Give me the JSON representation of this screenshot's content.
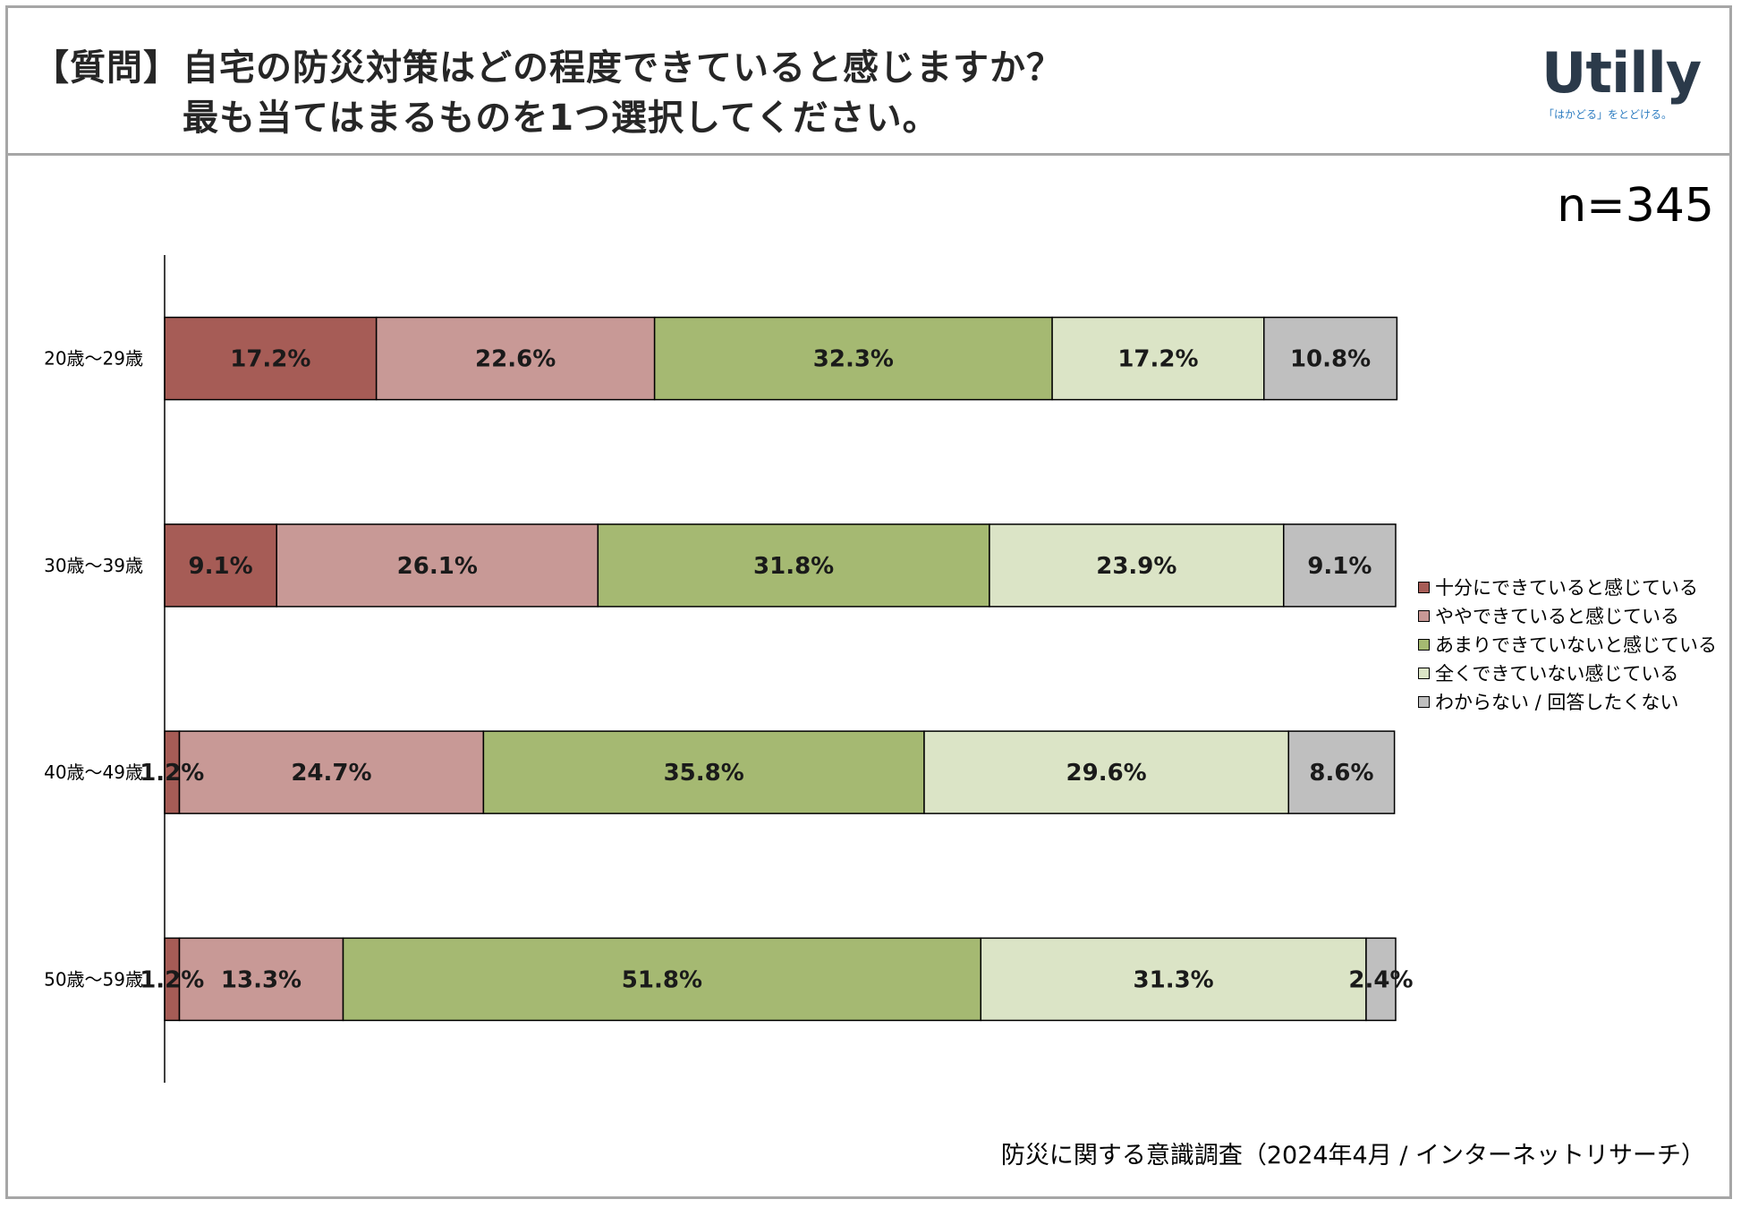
{
  "header": {
    "question_label": "【質問】",
    "question_line1": "自宅の防災対策はどの程度できていると感じますか？",
    "question_line2": "最も当てはまるものを1つ選択してください。"
  },
  "logo": {
    "name": "Utilly",
    "tagline": "「はかどる」をとどける。"
  },
  "sample_size": "n=345",
  "footer": "防災に関する意識調査（2024年4月 / インターネットリサーチ）",
  "chart_data": {
    "type": "bar",
    "orientation": "horizontal",
    "stacked": "percent",
    "categories": [
      "20歳～29歳",
      "30歳～39歳",
      "40歳～49歳",
      "50歳～59歳"
    ],
    "series": [
      {
        "name": "十分にできていると感じている",
        "color": "#a65c56",
        "values": [
          17.2,
          9.1,
          1.2,
          1.2
        ],
        "labels": [
          "17.2%",
          "9.1%",
          "1.2%",
          "1.2%"
        ]
      },
      {
        "name": "ややできていると感じている",
        "color": "#c89996",
        "values": [
          22.6,
          26.1,
          24.7,
          13.3
        ],
        "labels": [
          "22.6%",
          "26.1%",
          "24.7%",
          "13.3%"
        ]
      },
      {
        "name": "あまりできていないと感じている",
        "color": "#a5b972",
        "values": [
          32.3,
          31.8,
          35.8,
          51.8
        ],
        "labels": [
          "32.3%",
          "31.8%",
          "35.8%",
          "51.8%"
        ]
      },
      {
        "name": "全くできていない感じている",
        "color": "#dbe4c6",
        "values": [
          17.2,
          23.9,
          29.6,
          31.3
        ],
        "labels": [
          "17.2%",
          "23.9%",
          "29.6%",
          "31.3%"
        ]
      },
      {
        "name": "わからない / 回答したくない",
        "color": "#bfbfbf",
        "values": [
          10.8,
          9.1,
          8.6,
          2.4
        ],
        "labels": [
          "10.8%",
          "9.1%",
          "8.6%",
          "2.4%"
        ]
      }
    ],
    "xlim": [
      0,
      100
    ],
    "grid": false,
    "legend": "right"
  }
}
